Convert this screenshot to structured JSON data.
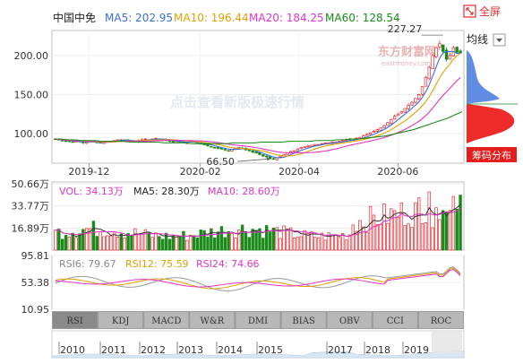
{
  "header": {
    "name": "中国中免",
    "ma5_label": "MA5: 202.95",
    "ma10_label": "MA10: 196.44",
    "ma20_label": "MA20: 184.25",
    "ma60_label": "MA60: 128.54",
    "fullscreen_label": "全屏",
    "ma_select_label": "均线",
    "chip_button_label": "筹码分布",
    "watermark_brand": "东方财富网",
    "watermark_url": "eastmoney.com",
    "watermark_center": "点击查看新版极速行情"
  },
  "colors": {
    "up": "#e8272e",
    "down": "#1a8a1a",
    "ma5": "#3b6fd8",
    "ma10": "#e0a100",
    "ma20": "#e233c8",
    "ma60": "#1a8a1a",
    "chip_blue": "#4f7fe0",
    "chip_red": "#ee2a2a"
  },
  "chart_data": [
    {
      "type": "candlestick",
      "title": "中国中免",
      "x_ticks": [
        "2019-12",
        "2020-02",
        "2020-04",
        "2020-06"
      ],
      "y_ticks": [
        100,
        150,
        200
      ],
      "ylim": [
        62,
        232
      ],
      "annotations": [
        {
          "text": "227.27",
          "value": 227.27,
          "period": "2020-07"
        },
        {
          "text": "66.50",
          "value": 66.5,
          "period": "2020-03"
        }
      ],
      "series": [
        {
          "name": "MA5",
          "value": 202.95
        },
        {
          "name": "MA10",
          "value": 196.44
        },
        {
          "name": "MA20",
          "value": 184.25
        },
        {
          "name": "MA60",
          "value": 128.54
        }
      ],
      "approx_closes": [
        93,
        92,
        91,
        90,
        90,
        89,
        91,
        90,
        88,
        89,
        90,
        89,
        88,
        88,
        89,
        90,
        90,
        91,
        92,
        91,
        92,
        91,
        90,
        90,
        91,
        92,
        93,
        92,
        93,
        94,
        93,
        92,
        91,
        90,
        89,
        90,
        89,
        88,
        89,
        90,
        89,
        88,
        87,
        86,
        84,
        83,
        82,
        81,
        80,
        79,
        78,
        80,
        81,
        82,
        81,
        79,
        78,
        76,
        75,
        73,
        71,
        70,
        68,
        67,
        69,
        71,
        73,
        75,
        77,
        78,
        80,
        82,
        83,
        84,
        85,
        86,
        86,
        87,
        88,
        88,
        89,
        89,
        90,
        91,
        92,
        92,
        93,
        94,
        95,
        97,
        99,
        101,
        103,
        105,
        107,
        110,
        114,
        118,
        122,
        125,
        128,
        132,
        136,
        140,
        145,
        150,
        160,
        172,
        185,
        200,
        210,
        215,
        205,
        195,
        200,
        210,
        204,
        203
      ],
      "ma60_path": [
        93,
        93,
        92,
        92,
        91,
        91,
        91,
        90,
        90,
        90,
        90,
        89,
        89,
        89,
        89,
        89,
        88,
        88,
        88,
        88,
        87,
        87,
        87,
        87,
        87,
        87,
        88,
        88,
        88,
        88,
        89,
        89,
        89,
        89,
        90,
        90,
        90,
        90,
        91,
        91,
        91,
        92,
        92,
        93,
        93,
        94,
        95,
        96,
        97,
        99,
        101,
        103,
        105,
        108,
        111,
        114,
        117,
        120,
        124,
        128
      ]
    },
    {
      "type": "bar",
      "title": "VOL",
      "values_label": "VOL: 34.13万",
      "ma5_label": "MA5: 28.30万",
      "ma10_label": "MA10: 28.60万",
      "y_ticks": [
        "50.66万",
        "33.77万",
        "16.89万"
      ],
      "ylim": [
        0,
        52
      ]
    },
    {
      "type": "line",
      "title": "RSI",
      "series": [
        {
          "name": "RSI6",
          "value": 79.67
        },
        {
          "name": "RSI12",
          "value": 75.59
        },
        {
          "name": "RSI24",
          "value": 74.66
        }
      ],
      "y_ticks": [
        95.81,
        53.38,
        10.95
      ],
      "ylim": [
        10.95,
        95.81
      ]
    }
  ],
  "rsi_labels": {
    "rsi6": "RSI6: 79.67",
    "rsi12": "RSI12: 75.59",
    "rsi24": "RSI24: 74.66"
  },
  "indicator_tabs": [
    "RSI",
    "KDJ",
    "MACD",
    "W&R",
    "DMI",
    "BIAS",
    "OBV",
    "CCI",
    "ROC"
  ],
  "active_tab": "RSI",
  "year_axis": [
    "2010",
    "2011",
    "2012",
    "2013",
    "2014",
    "2015",
    "2017",
    "2018",
    "2019"
  ]
}
